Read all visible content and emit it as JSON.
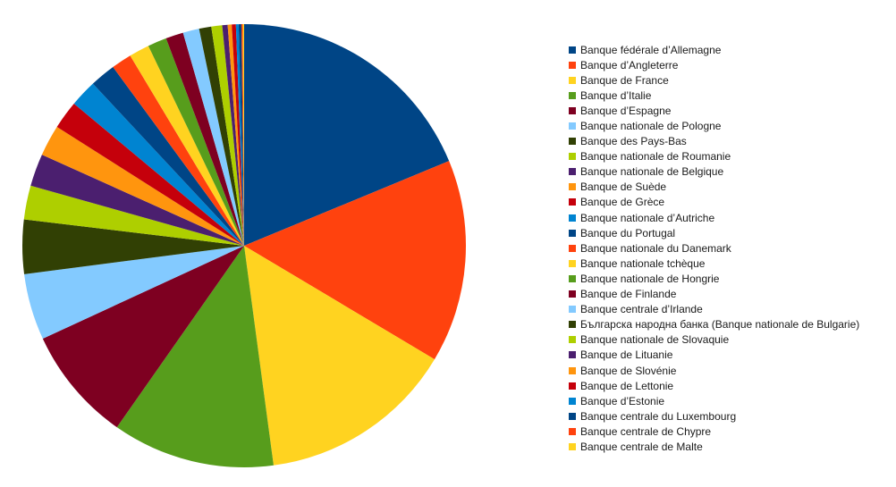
{
  "chart_data": {
    "type": "pie",
    "start_angle_deg": 0,
    "direction": "clockwise",
    "legend_position": "right",
    "slices": [
      {
        "label": "Banque fédérale d’Allemagne",
        "value": 19.0,
        "color": "#004586"
      },
      {
        "label": "Banque d’Angleterre",
        "value": 15.0,
        "color": "#ff420e"
      },
      {
        "label": "Banque de France",
        "value": 14.5,
        "color": "#ffd320"
      },
      {
        "label": "Banque d’Italie",
        "value": 12.0,
        "color": "#579d1c"
      },
      {
        "label": "Banque d’Espagne",
        "value": 8.5,
        "color": "#7e0021"
      },
      {
        "label": "Banque nationale de Pologne",
        "value": 4.9,
        "color": "#83caff"
      },
      {
        "label": "Banque des Pays-Bas",
        "value": 4.0,
        "color": "#314004"
      },
      {
        "label": "Banque nationale de Roumanie",
        "value": 2.5,
        "color": "#aecf00"
      },
      {
        "label": "Banque nationale de Belgique",
        "value": 2.4,
        "color": "#4b1f6f"
      },
      {
        "label": "Banque de Suède",
        "value": 2.3,
        "color": "#ff950e"
      },
      {
        "label": "Banque de Grèce",
        "value": 2.1,
        "color": "#c5000b"
      },
      {
        "label": "Banque nationale d’Autriche",
        "value": 2.0,
        "color": "#0084d1"
      },
      {
        "label": "Banque du Portugal",
        "value": 1.9,
        "color": "#004586"
      },
      {
        "label": "Banque nationale du Danemark",
        "value": 1.5,
        "color": "#ff420e"
      },
      {
        "label": "Banque nationale tchèque",
        "value": 1.5,
        "color": "#ffd320"
      },
      {
        "label": "Banque nationale de Hongrie",
        "value": 1.4,
        "color": "#579d1c"
      },
      {
        "label": "Banque de Finlande",
        "value": 1.3,
        "color": "#7e0021"
      },
      {
        "label": "Banque centrale d’Irlande",
        "value": 1.2,
        "color": "#83caff"
      },
      {
        "label": "Българска народна банка (Banque nationale de Bulgarie)",
        "value": 0.9,
        "color": "#314004"
      },
      {
        "label": "Banque nationale de Slovaquie",
        "value": 0.8,
        "color": "#aecf00"
      },
      {
        "label": "Banque de Lituanie",
        "value": 0.4,
        "color": "#4b1f6f"
      },
      {
        "label": "Banque de Slovénie",
        "value": 0.3,
        "color": "#ff950e"
      },
      {
        "label": "Banque de Lettonie",
        "value": 0.3,
        "color": "#c5000b"
      },
      {
        "label": "Banque d’Estonie",
        "value": 0.2,
        "color": "#0084d1"
      },
      {
        "label": "Banque centrale du Luxembourg",
        "value": 0.2,
        "color": "#004586"
      },
      {
        "label": "Banque centrale de Chypre",
        "value": 0.1,
        "color": "#ff420e"
      },
      {
        "label": "Banque centrale de Malte",
        "value": 0.1,
        "color": "#ffd320"
      }
    ]
  }
}
